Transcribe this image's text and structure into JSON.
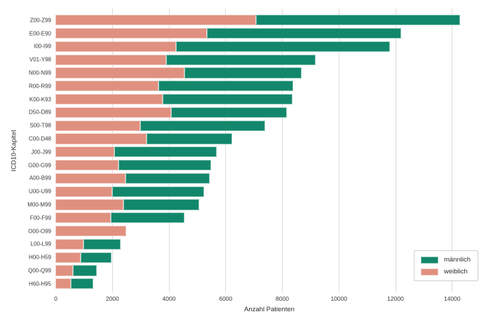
{
  "chart_data": {
    "type": "bar",
    "orientation": "horizontal",
    "stacked": true,
    "title": "",
    "xlabel": "Anzahl Patienten",
    "ylabel": "ICD10-Kapitel",
    "categories": [
      "Z00-Z99",
      "E00-E90",
      "I00-I99",
      "V01-Y98",
      "N00-N99",
      "R00-R99",
      "K00-K93",
      "D50-D89",
      "S00-T98",
      "C00-D48",
      "J00-J99",
      "G00-G99",
      "A00-B99",
      "U00-U99",
      "M00-M99",
      "F00-F99",
      "O00-O99",
      "L00-L99",
      "H00-H59",
      "Q00-Q99",
      "H60-H95"
    ],
    "series": [
      {
        "name": "männlich",
        "color": "#12876B",
        "values": [
          7210,
          6880,
          7550,
          5275,
          4150,
          4770,
          4590,
          4100,
          4410,
          3010,
          3600,
          3280,
          2970,
          3250,
          2690,
          2620,
          0,
          1320,
          1100,
          840,
          780
        ]
      },
      {
        "name": "weiblich",
        "color": "#E0907F",
        "values": [
          7070,
          5340,
          4260,
          3915,
          4550,
          3630,
          3780,
          4080,
          3000,
          3230,
          2090,
          2220,
          2470,
          2000,
          2400,
          1950,
          2500,
          980,
          880,
          630,
          550
        ]
      }
    ],
    "totals": [
      14280,
      12220,
      11810,
      9190,
      8700,
      8400,
      8370,
      8180,
      7410,
      6240,
      5690,
      5500,
      5440,
      5250,
      5090,
      4570,
      2500,
      2300,
      1980,
      1470,
      1330
    ],
    "stack_order": [
      "weiblich",
      "männlich"
    ],
    "x_ticks": [
      0,
      2000,
      4000,
      6000,
      8000,
      10000,
      12000,
      14000
    ],
    "xlim": [
      0,
      15100
    ],
    "grid": "vertical-gridlines",
    "legend_position": "lower right",
    "gridline_color": "#dcdcdc",
    "background_color": "#ffffff"
  }
}
